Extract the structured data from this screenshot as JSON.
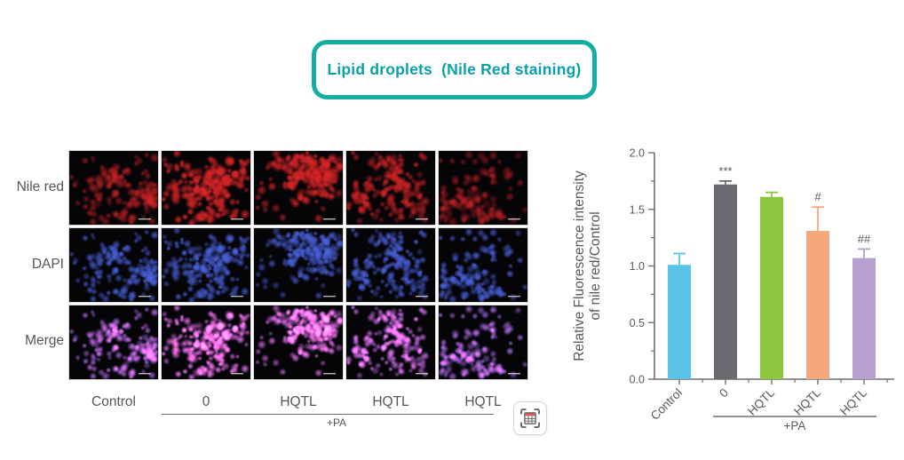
{
  "title": {
    "label": "Lipid droplets  (Nile Red staining)",
    "accent_color": "#14ada3",
    "text_color": "#0a9fae"
  },
  "microscopy": {
    "row_labels": [
      "Nile red",
      "DAPI",
      "Merge"
    ],
    "col_labels": [
      "Control",
      "0",
      "HQTL",
      "HQTL",
      "HQTL"
    ],
    "group_label": "+PA",
    "group_cols": [
      1,
      4
    ],
    "channel_colors": {
      "nile_red": "214,36,38",
      "dapi": "74,98,222",
      "merge_red_overlay": "225,40,70",
      "background": "#050407"
    },
    "cell_density": [
      150,
      210,
      200,
      170,
      130
    ],
    "cell_brightness": [
      0.65,
      1.0,
      0.95,
      0.78,
      0.55
    ]
  },
  "capture_button": {
    "icon": "table-capture-icon",
    "header_color": "#e2574c"
  },
  "chart_data": {
    "type": "bar",
    "categories": [
      "Control",
      "0",
      "HQTL",
      "HQTL",
      "HQTL"
    ],
    "values": [
      1.01,
      1.72,
      1.61,
      1.31,
      1.07
    ],
    "errors": [
      0.1,
      0.03,
      0.04,
      0.21,
      0.08
    ],
    "annotations": [
      "",
      "***",
      "",
      "#",
      "##"
    ],
    "bar_colors": [
      "#5bc2e8",
      "#6a6b6e",
      "#8dc63f",
      "#f5a87d",
      "#b5a0d0"
    ],
    "ylabel_lines": [
      "Relative Fluorescence intensity",
      "of nile red/Control"
    ],
    "yticks": [
      "0.0",
      "0.5",
      "1.0",
      "1.5",
      "2.0"
    ],
    "ylim": [
      0,
      2
    ],
    "minor_ytick_values": [
      0.25,
      0.75,
      1.25,
      1.75
    ],
    "group_label": "+PA",
    "group_span": [
      1,
      4
    ],
    "axis_color": "#6d6e71",
    "text_color": "#58595b",
    "grid": false,
    "legend": false
  }
}
